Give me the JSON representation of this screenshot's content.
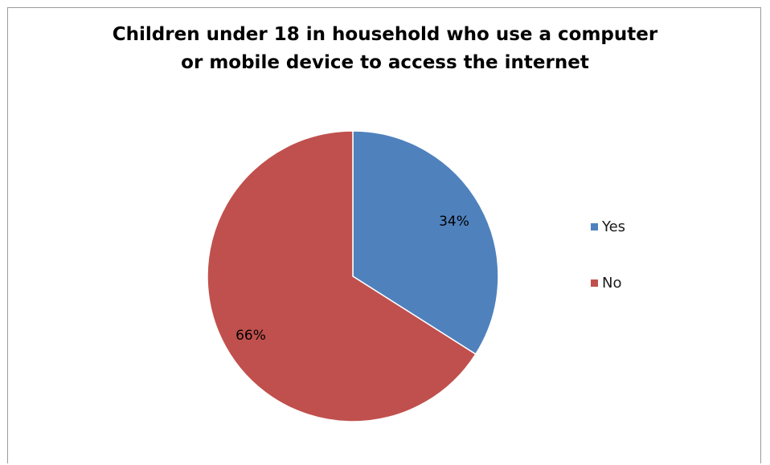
{
  "chart_data": {
    "type": "pie",
    "title": "Children under 18 in household who use a computer or mobile device to access the internet",
    "title_lines": [
      "Children under 18 in household who use a computer",
      "or mobile device to access the internet"
    ],
    "categories": [
      "Yes",
      "No"
    ],
    "values": [
      34,
      66
    ],
    "data_labels": [
      "34%",
      "66%"
    ],
    "colors": [
      "#4f81bd",
      "#c0504d"
    ],
    "legend_position": "right",
    "start_angle": "12 o'clock, clockwise"
  }
}
